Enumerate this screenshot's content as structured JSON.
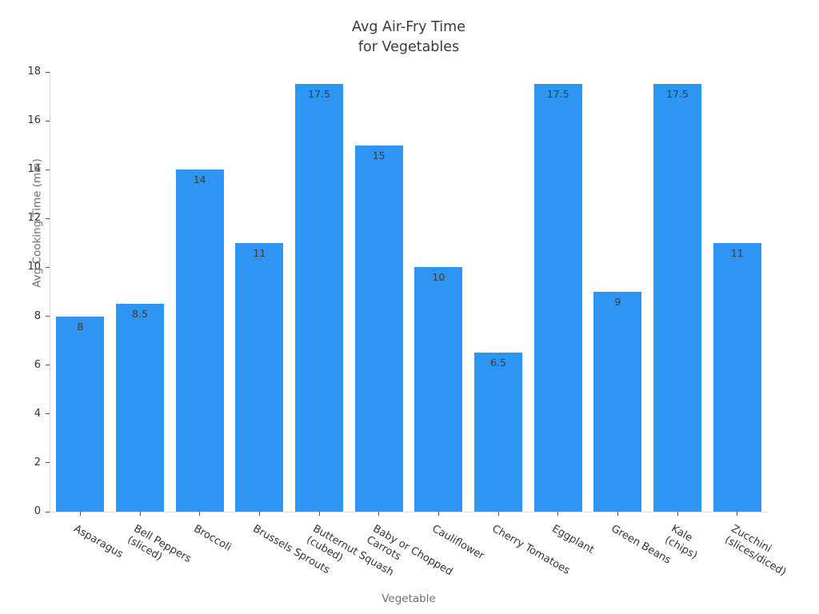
{
  "chart_data": {
    "type": "bar",
    "title": "Avg Air-Fry Time\nfor Vegetables",
    "xlabel": "Vegetable",
    "ylabel": "Avg Cooking Time (min)",
    "ylim": [
      0,
      18
    ],
    "ytick_step": 2,
    "ytick_labels": [
      "0",
      "2",
      "4",
      "6",
      "8",
      "10",
      "12",
      "14",
      "16",
      "18"
    ],
    "grid": false,
    "legend": null,
    "bar_color": "#2e95f4",
    "axis_line_color": "#d9d9d9",
    "tick_color": "#4d4d4d",
    "tick_label_color": "#333333",
    "axis_title_color": "#6e6e6e",
    "title_color": "#3a3a3a",
    "value_label_color": "#3b3b3b",
    "categories": [
      "Asparagus",
      "Bell Peppers\n(sliced)",
      "Broccoli",
      "Brussels Sprouts",
      "Butternut Squash\n(cubed)",
      "Baby or Chopped\nCarrots",
      "Cauliflower",
      "Cherry Tomatoes",
      "Eggplant",
      "Green Beans",
      "Kale\n(chips)",
      "Zucchini\n(slices/diced)"
    ],
    "values": [
      8,
      8.5,
      14,
      11,
      17.5,
      15,
      10,
      6.5,
      17.5,
      9,
      17.5,
      11
    ],
    "value_labels": [
      "8",
      "8.5",
      "14",
      "11",
      "17.5",
      "15",
      "10",
      "6.5",
      "17.5",
      "9",
      "17.5",
      "11"
    ]
  }
}
